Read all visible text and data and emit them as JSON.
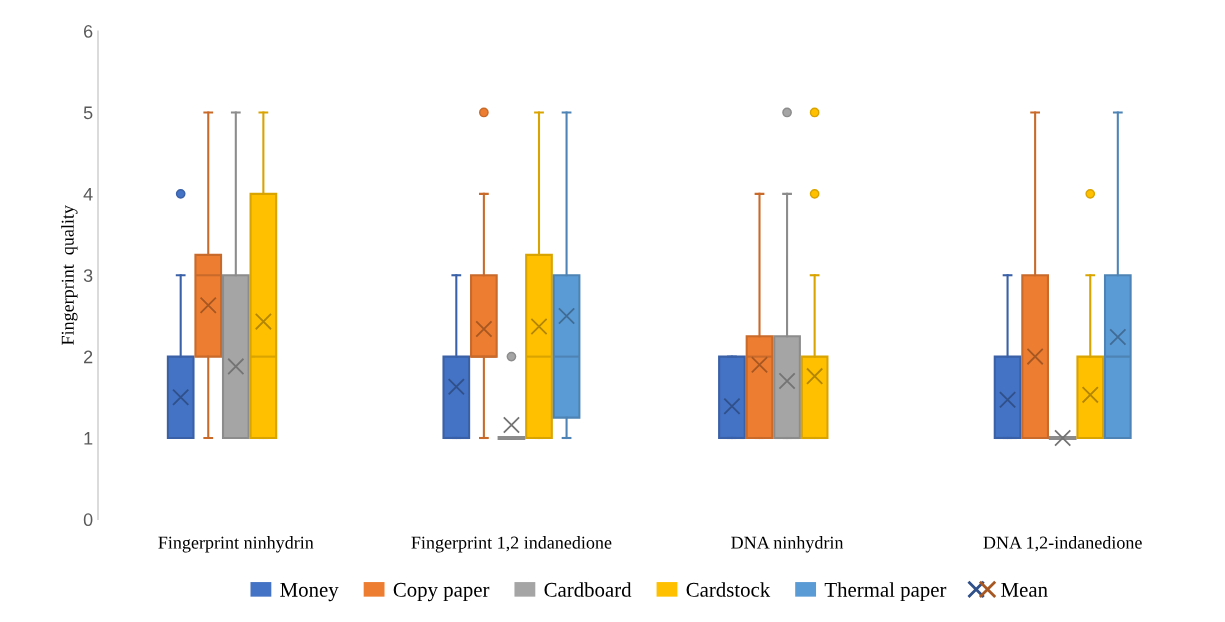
{
  "chart_data": {
    "type": "box",
    "ylabel": "Fingerprint  quality",
    "categories": [
      "Fingerprint ninhydrin",
      "Fingerprint 1,2 indanedione",
      "DNA ninhydrin",
      "DNA 1,2-indanedione"
    ],
    "ylim": [
      0,
      6
    ],
    "yticks": [
      0,
      1,
      2,
      3,
      4,
      5,
      6
    ],
    "grid": false,
    "legend": "bottom",
    "series": [
      {
        "name": "Money",
        "color": "#4472c4",
        "boxes": [
          {
            "low": 1,
            "q1": 1,
            "median": 1,
            "q3": 2,
            "high": 3,
            "mean": 1.5,
            "outliers": [
              4
            ]
          },
          {
            "low": 1,
            "q1": 1,
            "median": 1,
            "q3": 2,
            "high": 3,
            "mean": 1.63
          },
          {
            "low": 1,
            "q1": 1,
            "median": 1,
            "q3": 2,
            "high": 2,
            "mean": 1.39
          },
          {
            "low": 1,
            "q1": 1,
            "median": 1,
            "q3": 2,
            "high": 3,
            "mean": 1.47
          }
        ]
      },
      {
        "name": "Copy paper",
        "color": "#ed7d31",
        "boxes": [
          {
            "low": 1,
            "q1": 2,
            "median": 3,
            "q3": 3.25,
            "high": 5,
            "mean": 2.63
          },
          {
            "low": 1,
            "q1": 2,
            "median": 2,
            "q3": 3,
            "high": 4,
            "mean": 2.34,
            "outliers": [
              5
            ]
          },
          {
            "low": 1,
            "q1": 1,
            "median": 2,
            "q3": 2.25,
            "high": 4,
            "mean": 1.9
          },
          {
            "low": 1,
            "q1": 1,
            "median": 1,
            "q3": 3,
            "high": 5,
            "mean": 2.0
          }
        ]
      },
      {
        "name": "Cardboard",
        "color": "#a5a5a5",
        "boxes": [
          {
            "low": 1,
            "q1": 1,
            "median": 1,
            "q3": 3,
            "high": 5,
            "mean": 1.88
          },
          {
            "low": 1,
            "q1": 1,
            "median": 1,
            "q3": 1,
            "high": 1,
            "mean": 1.16,
            "outliers": [
              2
            ]
          },
          {
            "low": 1,
            "q1": 1,
            "median": 1,
            "q3": 2.25,
            "high": 4,
            "mean": 1.7,
            "outliers": [
              5
            ]
          },
          {
            "low": 1,
            "q1": 1,
            "median": 1,
            "q3": 1,
            "high": 1,
            "mean": 1.0
          }
        ]
      },
      {
        "name": "Cardstock",
        "color": "#ffc000",
        "boxes": [
          {
            "low": 1,
            "q1": 1,
            "median": 2,
            "q3": 4,
            "high": 5,
            "mean": 2.43
          },
          {
            "low": 1,
            "q1": 1,
            "median": 2,
            "q3": 3.25,
            "high": 5,
            "mean": 2.37
          },
          {
            "low": 1,
            "q1": 1,
            "median": 1,
            "q3": 2,
            "high": 3,
            "mean": 1.76,
            "outliers": [
              4,
              5
            ]
          },
          {
            "low": 1,
            "q1": 1,
            "median": 1,
            "q3": 2,
            "high": 3,
            "mean": 1.53,
            "outliers": [
              4
            ]
          }
        ]
      },
      {
        "name": "Thermal paper",
        "color": "#5b9bd5",
        "boxes": [
          null,
          {
            "low": 1,
            "q1": 1.25,
            "median": 2,
            "q3": 3,
            "high": 5,
            "mean": 2.5
          },
          null,
          {
            "low": 1,
            "q1": 1,
            "median": 2,
            "q3": 3,
            "high": 5,
            "mean": 2.24
          }
        ]
      }
    ],
    "marker": "cross",
    "annotations": [
      "Mean"
    ]
  }
}
